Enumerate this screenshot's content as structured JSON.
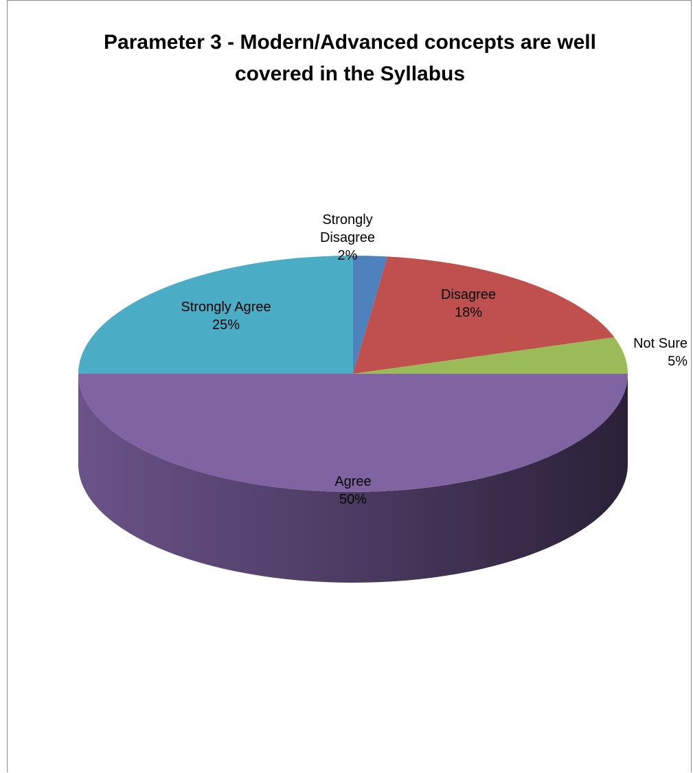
{
  "chart_data": {
    "type": "pie",
    "title_lines": [
      "Parameter 3 - Modern/Advanced concepts are well",
      "covered in the Syllabus"
    ],
    "categories": [
      "Strongly Disagree",
      "Disagree",
      "Not Sure",
      "Agree",
      "Strongly Agree"
    ],
    "values": [
      2,
      18,
      5,
      50,
      25
    ],
    "data_labels": [
      [
        "Strongly",
        "Disagree",
        "2%"
      ],
      [
        "Disagree",
        "18%"
      ],
      [
        "Not Sure",
        "5%"
      ],
      [
        "Agree",
        "50%"
      ],
      [
        "Strongly Agree",
        "25%"
      ]
    ],
    "colors": [
      "#4f81bd",
      "#c0504d",
      "#9bbb59",
      "#8064a2",
      "#4bacc6"
    ],
    "style": "3d",
    "legend": "none"
  }
}
